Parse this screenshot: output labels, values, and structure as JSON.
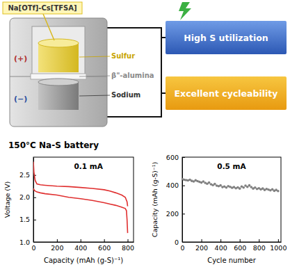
{
  "heading": "150°C Na-S battery",
  "diagram": {
    "electrolyte": "Na[OTf]-Cs[TFSA]",
    "positive": "(+)",
    "negative": "(−)",
    "layers": [
      "Sulfur",
      "β\"-alumina",
      "Sodium"
    ],
    "features": [
      "High S utilization",
      "Excellent cycleability"
    ]
  },
  "chart_data": [
    {
      "type": "line",
      "x_label": "Capacity (mAh (g-S)⁻¹)",
      "y_label": "Voltage (V)",
      "annotation": "0.1 mA",
      "xlim": [
        0,
        850
      ],
      "xticks": [
        0,
        200,
        400,
        600,
        800
      ],
      "ylim": [
        1.0,
        2.9
      ],
      "yticks": [
        {
          "value": 1.0,
          "label": "1.0"
        },
        1.5,
        {
          "value": 2.0,
          "label": "2.0"
        },
        2.5
      ],
      "series": [
        {
          "color": "#e03030",
          "line_style": "solid",
          "x": [
            0,
            5,
            15,
            30,
            60,
            100,
            200,
            300,
            400,
            500,
            600,
            650,
            700,
            750,
            780,
            795,
            800
          ],
          "values": [
            2.8,
            2.55,
            2.38,
            2.3,
            2.28,
            2.27,
            2.25,
            2.24,
            2.22,
            2.2,
            2.17,
            2.14,
            2.1,
            2.05,
            2.0,
            1.9,
            1.8
          ]
        },
        {
          "color": "#e03030",
          "line_style": "solid",
          "x": [
            0,
            10,
            30,
            60,
            100,
            200,
            300,
            400,
            500,
            600,
            650,
            700,
            750,
            780,
            790,
            795,
            800
          ],
          "values": [
            2.2,
            2.15,
            2.12,
            2.1,
            2.08,
            2.05,
            2.0,
            1.97,
            1.93,
            1.88,
            1.85,
            1.82,
            1.78,
            1.75,
            1.7,
            1.5,
            1.2
          ]
        }
      ]
    },
    {
      "type": "scatter",
      "x_label": "Cycle number",
      "y_label": "Capacity (mAh (g-S)⁻¹)",
      "annotation": "0.5 mA",
      "xlim": [
        0,
        1030
      ],
      "xticks": [
        0,
        200,
        400,
        600,
        800,
        1000
      ],
      "ylim": [
        0,
        600
      ],
      "yticks": [
        0,
        200,
        400,
        600
      ],
      "series": [
        {
          "color": "#808080",
          "marker": "circle",
          "x": [
            1,
            20,
            40,
            60,
            80,
            100,
            120,
            140,
            160,
            180,
            200,
            220,
            240,
            260,
            280,
            300,
            320,
            340,
            360,
            380,
            400,
            420,
            440,
            460,
            480,
            500,
            520,
            540,
            560,
            580,
            600,
            620,
            640,
            660,
            680,
            700,
            720,
            740,
            760,
            780,
            800,
            820,
            840,
            860,
            880,
            900,
            920,
            940,
            960,
            980,
            1000
          ],
          "values": [
            445,
            440,
            438,
            435,
            440,
            432,
            428,
            436,
            430,
            425,
            420,
            428,
            418,
            412,
            420,
            408,
            402,
            410,
            398,
            395,
            400,
            388,
            392,
            385,
            395,
            390,
            383,
            388,
            380,
            386,
            378,
            392,
            385,
            398,
            390,
            400,
            388,
            378,
            385,
            375,
            380,
            372,
            378,
            368,
            375,
            370,
            365,
            372,
            362,
            368,
            360
          ]
        }
      ]
    }
  ]
}
